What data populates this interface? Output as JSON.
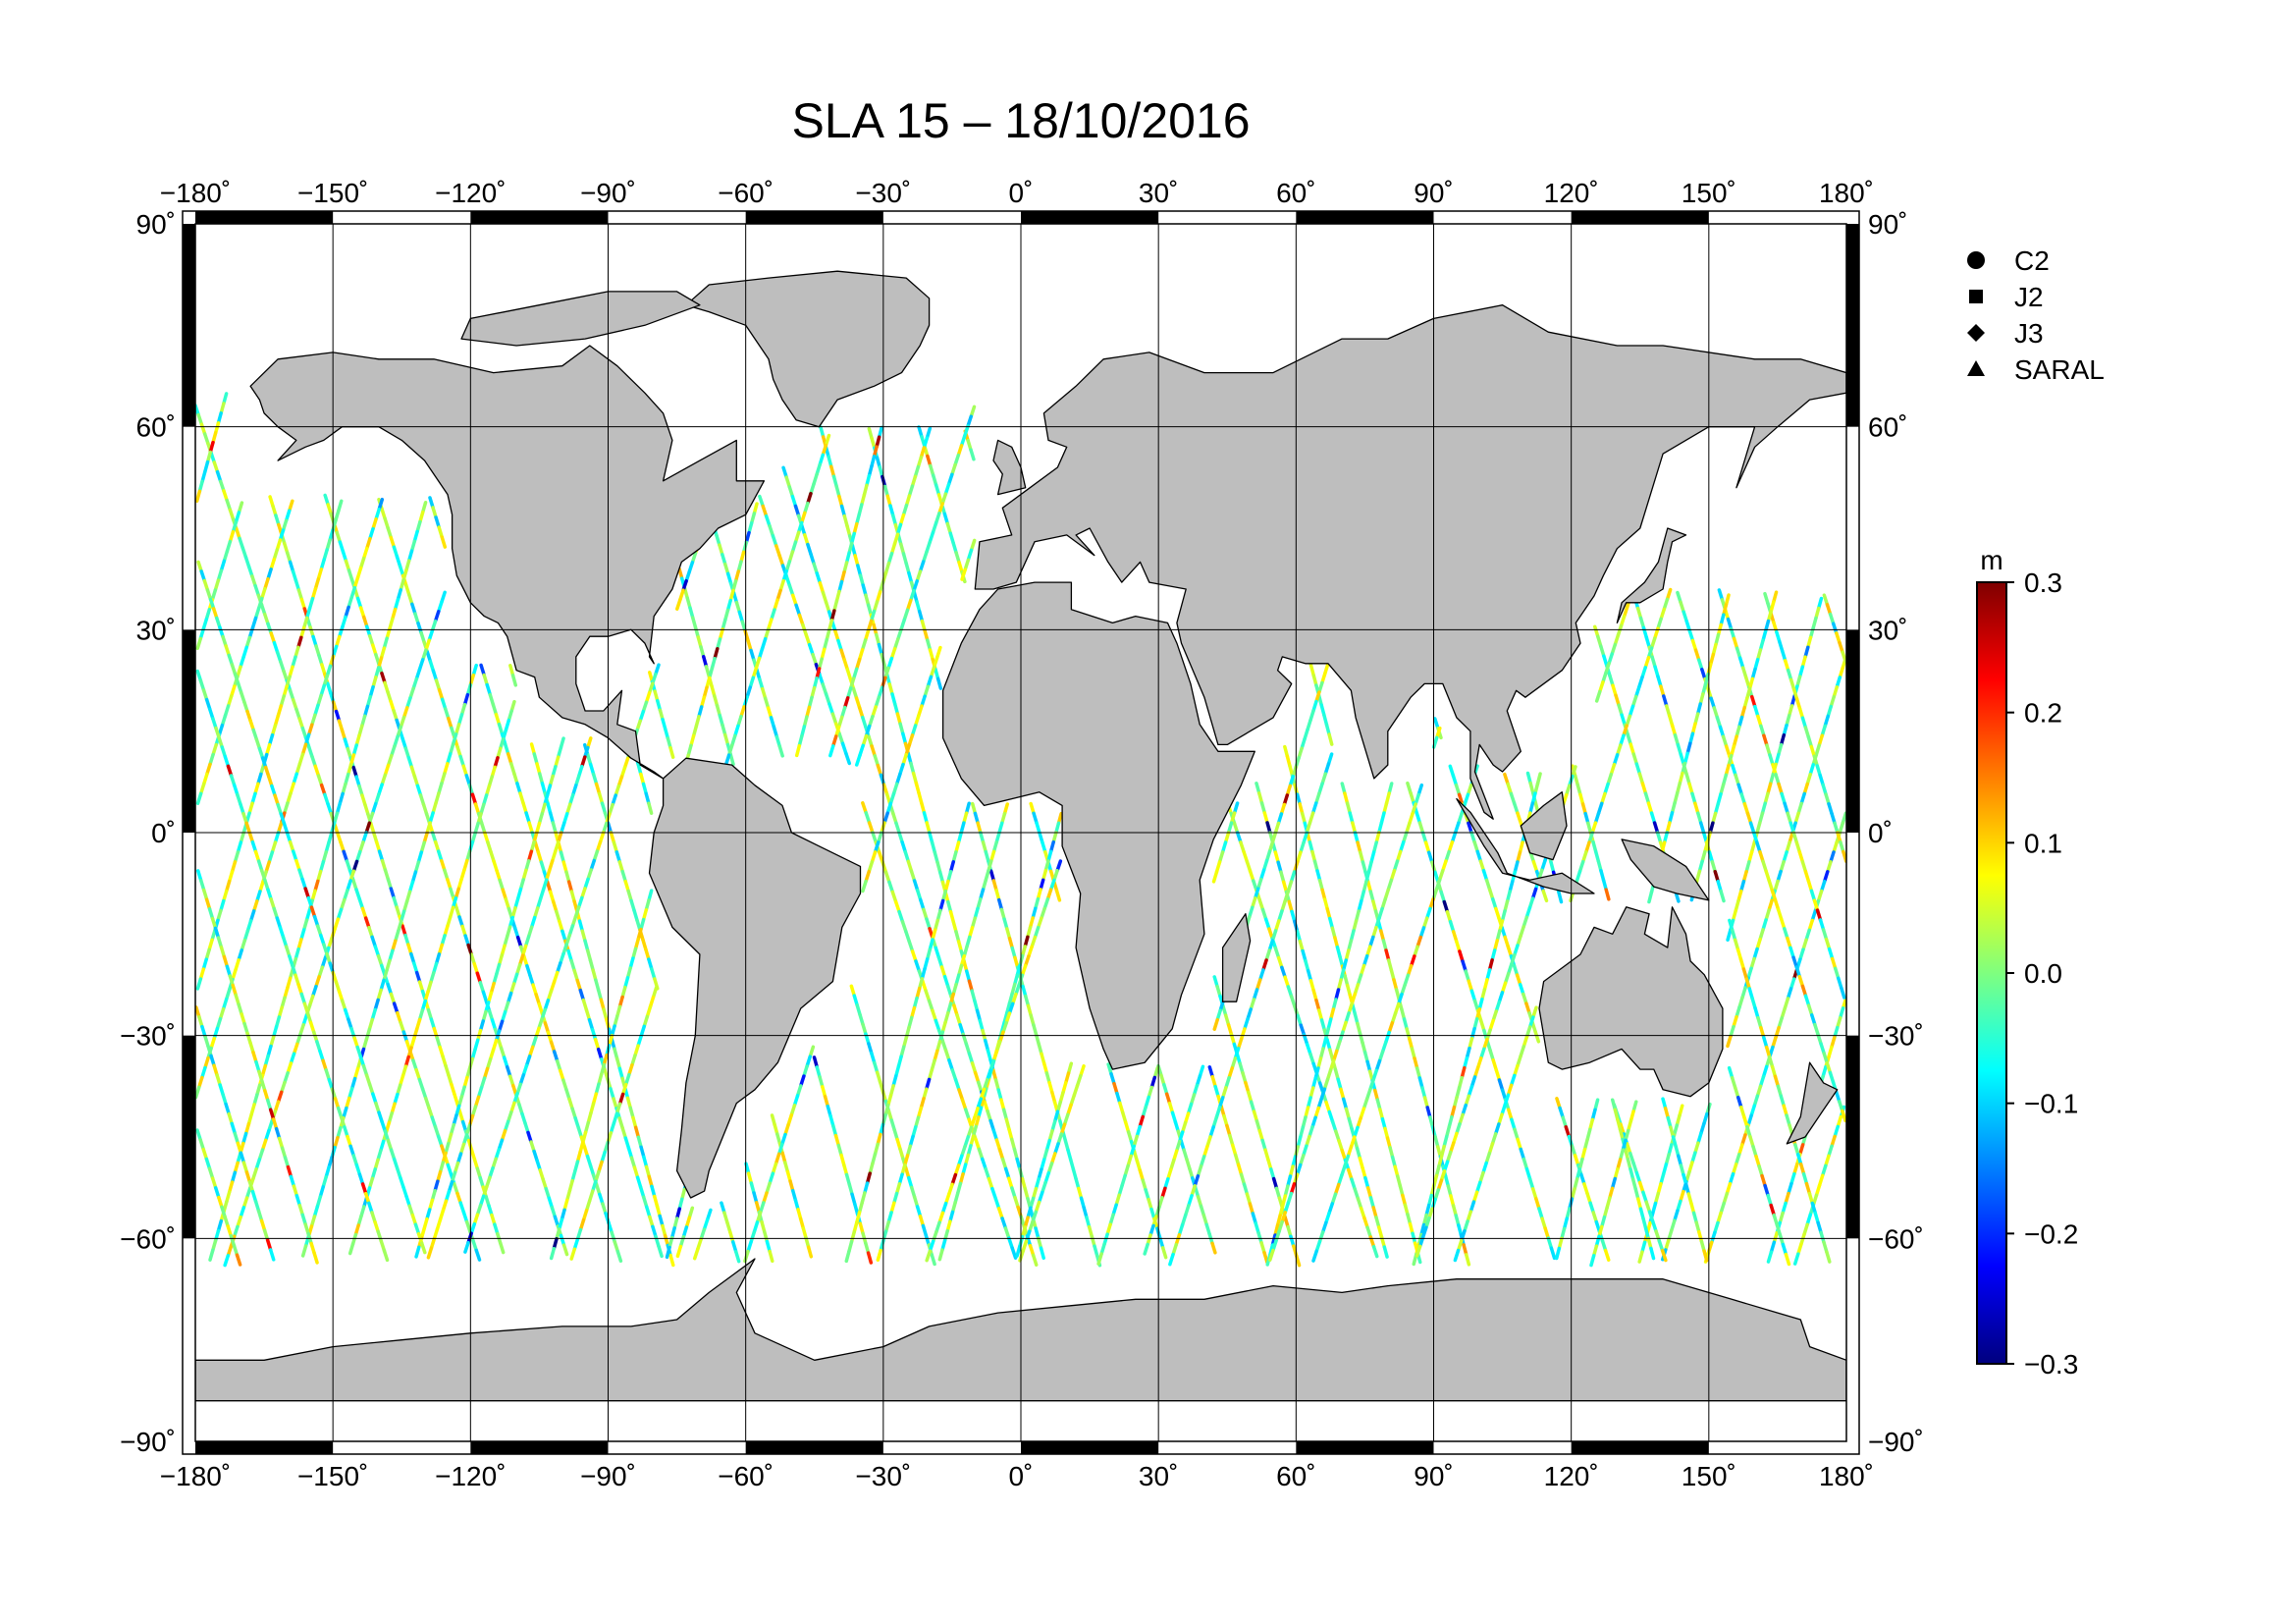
{
  "title": "SLA 15 – 18/10/2016",
  "map": {
    "projection": "equirectangular",
    "lon_range": [
      -180,
      180
    ],
    "lat_range": [
      -90,
      90
    ],
    "grid_lons": [
      -180,
      -150,
      -120,
      -90,
      -60,
      -30,
      0,
      30,
      60,
      90,
      120,
      150,
      180
    ],
    "grid_lats": [
      90,
      60,
      30,
      0,
      -30,
      -60,
      -90
    ],
    "lon_tick_labels": [
      "−180˚",
      "−150˚",
      "−120˚",
      "−90˚",
      "−60˚",
      "−30˚",
      "0˚",
      "30˚",
      "60˚",
      "90˚",
      "120˚",
      "150˚",
      "180˚"
    ],
    "lat_tick_labels": [
      "90˚",
      "60˚",
      "30˚",
      "0˚",
      "−30˚",
      "−60˚",
      "−90˚"
    ],
    "grid": true,
    "land_color": "#bebebe",
    "ocean_color": "#ffffff"
  },
  "legend": {
    "placement": "top-right",
    "items": [
      {
        "label": "C2",
        "marker": "circle"
      },
      {
        "label": "J2",
        "marker": "square"
      },
      {
        "label": "J3",
        "marker": "diamond"
      },
      {
        "label": "SARAL",
        "marker": "triangle"
      }
    ]
  },
  "colorbar": {
    "unit": "m",
    "min": -0.3,
    "max": 0.3,
    "tick_values": [
      0.3,
      0.2,
      0.1,
      0.0,
      -0.1,
      -0.2,
      -0.3
    ],
    "tick_labels": [
      "0.3",
      "0.2",
      "0.1",
      "0.0",
      "−0.1",
      "−0.2",
      "−0.3"
    ],
    "colormap": [
      "#00007f",
      "#0000ff",
      "#007fff",
      "#00ffff",
      "#7fff7f",
      "#ffff00",
      "#ff7f00",
      "#ff0000",
      "#7f0000"
    ]
  }
}
